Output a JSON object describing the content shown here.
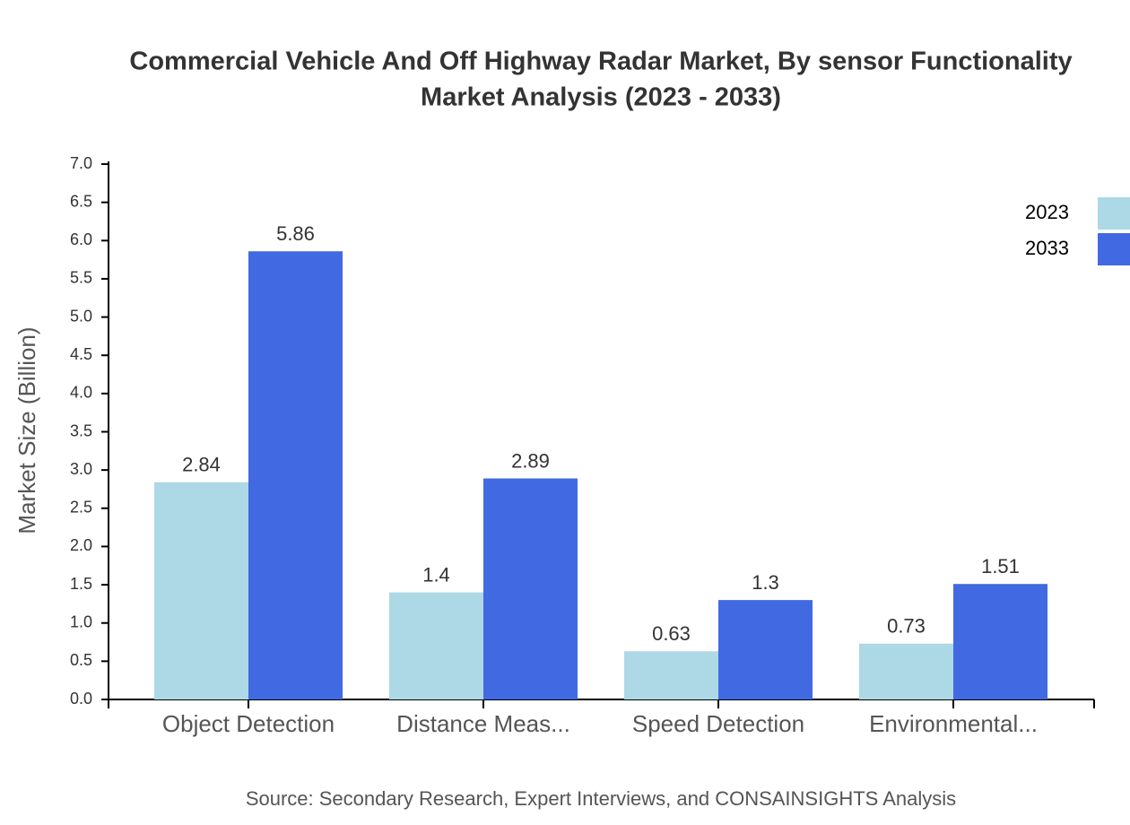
{
  "chart_data": {
    "type": "bar",
    "title": [
      "Commercial Vehicle And Off Highway Radar Market, By sensor Functionality",
      "Market Analysis (2023 - 2033)"
    ],
    "y_label": "Market Size (Billion)",
    "source": "Source: Secondary Research, Expert Interviews, and CONSAINSIGHTS Analysis",
    "categories": [
      "Object Detection",
      "Distance Meas...",
      "Speed Detection",
      "Environmental..."
    ],
    "series": [
      {
        "name": "2023",
        "color": "#add8e6",
        "values": [
          2.84,
          1.4,
          0.63,
          0.73
        ]
      },
      {
        "name": "2033",
        "color": "#4169e1",
        "values": [
          5.86,
          2.89,
          1.3,
          1.51
        ]
      }
    ],
    "ylim": [
      0,
      7
    ],
    "yticks": [
      {
        "value": 0,
        "label": "0.0"
      },
      0.5,
      {
        "value": 1,
        "label": "1.0"
      },
      1.5,
      {
        "value": 2,
        "label": "2.0"
      },
      2.5,
      {
        "value": 3,
        "label": "3.0"
      },
      3.5,
      {
        "value": 4,
        "label": "4.0"
      },
      4.5,
      {
        "value": 5,
        "label": "5.0"
      },
      5.5,
      {
        "value": 6,
        "label": "6.0"
      },
      6.5,
      {
        "value": 7,
        "label": "7.0"
      }
    ],
    "grid": false,
    "legend": "top-right"
  }
}
